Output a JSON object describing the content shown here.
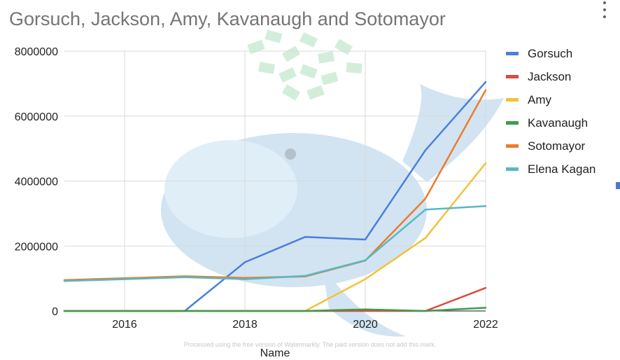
{
  "chart_data": {
    "type": "line",
    "title": "Gorsuch, Jackson, Amy, Kavanaugh and Sotomayor",
    "xlabel": "Name",
    "ylabel": "",
    "xlim": [
      2015,
      2022
    ],
    "ylim": [
      0,
      8000000
    ],
    "x_ticks": [
      "2016",
      "2018",
      "2020",
      "2022"
    ],
    "y_ticks": [
      "0",
      "2000000",
      "4000000",
      "6000000",
      "8000000"
    ],
    "legend_position": "right",
    "x": [
      2015,
      2016,
      2017,
      2018,
      2019,
      2020,
      2021,
      2022
    ],
    "series": [
      {
        "name": "Gorsuch",
        "color": "#4a7fe0",
        "values": [
          0,
          0,
          0,
          1500000,
          2280000,
          2200000,
          4950000,
          7050000
        ]
      },
      {
        "name": "Jackson",
        "color": "#dc4b3c",
        "values": [
          0,
          0,
          0,
          0,
          0,
          0,
          0,
          710000
        ]
      },
      {
        "name": "Amy",
        "color": "#f2c23a",
        "values": [
          0,
          0,
          0,
          0,
          0,
          980000,
          2250000,
          4550000
        ]
      },
      {
        "name": "Kavanaugh",
        "color": "#3d9c4f",
        "values": [
          0,
          0,
          0,
          0,
          0,
          50000,
          0,
          100000
        ]
      },
      {
        "name": "Sotomayor",
        "color": "#ee7a2e",
        "values": [
          950000,
          1010000,
          1070000,
          1020000,
          1060000,
          1550000,
          3460000,
          6800000
        ]
      },
      {
        "name": "Elena Kagan",
        "color": "#57b8c4",
        "values": [
          920000,
          980000,
          1040000,
          980000,
          1080000,
          1560000,
          3120000,
          3230000
        ]
      }
    ]
  },
  "watermark": {
    "text": "Processed using the free version of Watermarkly. The paid version does not add this mark."
  }
}
